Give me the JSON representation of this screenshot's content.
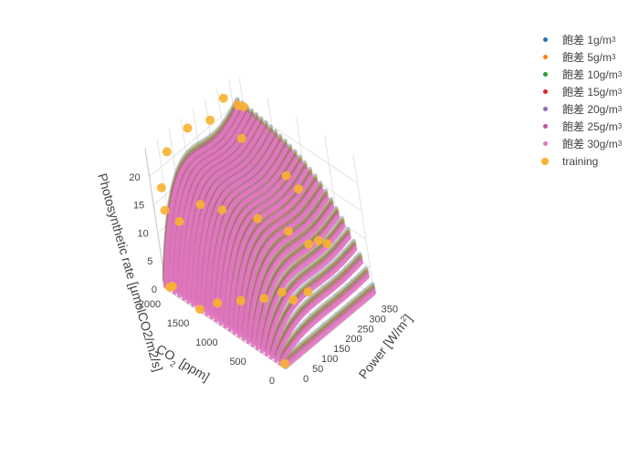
{
  "chart_data": {
    "type": "scatter3d",
    "title": "",
    "axes": {
      "x": {
        "title": "Power [W/m",
        "title_sup": "2",
        "title_end": "]",
        "ticks": [
          "0",
          "50",
          "100",
          "150",
          "200",
          "250",
          "300",
          "350"
        ],
        "range": [
          0,
          370
        ]
      },
      "y": {
        "title": "CO",
        "title_sub": "2",
        "title_end": " [ppm]",
        "ticks": [
          "0",
          "500",
          "1000",
          "1500",
          "2000"
        ],
        "range": [
          0,
          2100
        ]
      },
      "z": {
        "title": "Photosynthetic rate [µmolCO2/m2/s]",
        "ticks": [
          "0",
          "5",
          "10",
          "15",
          "20"
        ],
        "range": [
          0,
          25
        ]
      }
    },
    "grid": true,
    "legend_position": "top-right",
    "series": [
      {
        "name": "飽差 1g/m",
        "sup": "3",
        "color": "#1f77b4",
        "surface_level": 0
      },
      {
        "name": "飽差 5g/m",
        "sup": "3",
        "color": "#ff7f0e",
        "surface_level": 1
      },
      {
        "name": "飽差 10g/m",
        "sup": "3",
        "color": "#2ca02c",
        "surface_level": 2
      },
      {
        "name": "飽差 15g/m",
        "sup": "3",
        "color": "#d62728",
        "surface_level": 3
      },
      {
        "name": "飽差 20g/m",
        "sup": "3",
        "color": "#9467bd",
        "surface_level": 4
      },
      {
        "name": "飽差 25g/m",
        "sup": "3",
        "color": "#c2569b",
        "surface_level": 5
      },
      {
        "name": "飽差 30g/m",
        "sup": "3",
        "color": "#e377c2",
        "surface_level": 6
      },
      {
        "name": "training",
        "sup": "",
        "color": "#f8b230",
        "surface_level": null
      }
    ],
    "training_points": [
      {
        "x": 5,
        "y": 2050,
        "z": 0.5
      },
      {
        "x": 5,
        "y": 2000,
        "z": 1
      },
      {
        "x": 0,
        "y": 1500,
        "z": 0.5
      },
      {
        "x": 50,
        "y": 1400,
        "z": 0.5
      },
      {
        "x": 100,
        "y": 1200,
        "z": 0.5
      },
      {
        "x": 150,
        "y": 1000,
        "z": 0.5
      },
      {
        "x": 200,
        "y": 900,
        "z": 0.5
      },
      {
        "x": 200,
        "y": 700,
        "z": 0.5
      },
      {
        "x": 250,
        "y": 650,
        "z": 0.5
      },
      {
        "x": 0,
        "y": 0,
        "z": 1
      },
      {
        "x": 20,
        "y": 2000,
        "z": 14
      },
      {
        "x": 30,
        "y": 1800,
        "z": 13
      },
      {
        "x": 20,
        "y": 2000,
        "z": 18
      },
      {
        "x": 60,
        "y": 1500,
        "z": 17
      },
      {
        "x": 100,
        "y": 1300,
        "z": 16
      },
      {
        "x": 170,
        "y": 1000,
        "z": 14
      },
      {
        "x": 220,
        "y": 700,
        "z": 12
      },
      {
        "x": 250,
        "y": 500,
        "z": 10
      },
      {
        "x": 300,
        "y": 400,
        "z": 9
      },
      {
        "x": 60,
        "y": 2000,
        "z": 23
      },
      {
        "x": 150,
        "y": 2000,
        "z": 24
      },
      {
        "x": 200,
        "y": 1800,
        "z": 25
      },
      {
        "x": 300,
        "y": 2000,
        "z": 24
      },
      {
        "x": 250,
        "y": 1500,
        "z": 22
      },
      {
        "x": 350,
        "y": 2000,
        "z": 21
      },
      {
        "x": 370,
        "y": 2000,
        "z": 20
      },
      {
        "x": 300,
        "y": 1000,
        "z": 17
      },
      {
        "x": 300,
        "y": 800,
        "z": 16
      },
      {
        "x": 250,
        "y": 300,
        "z": 12
      }
    ]
  }
}
